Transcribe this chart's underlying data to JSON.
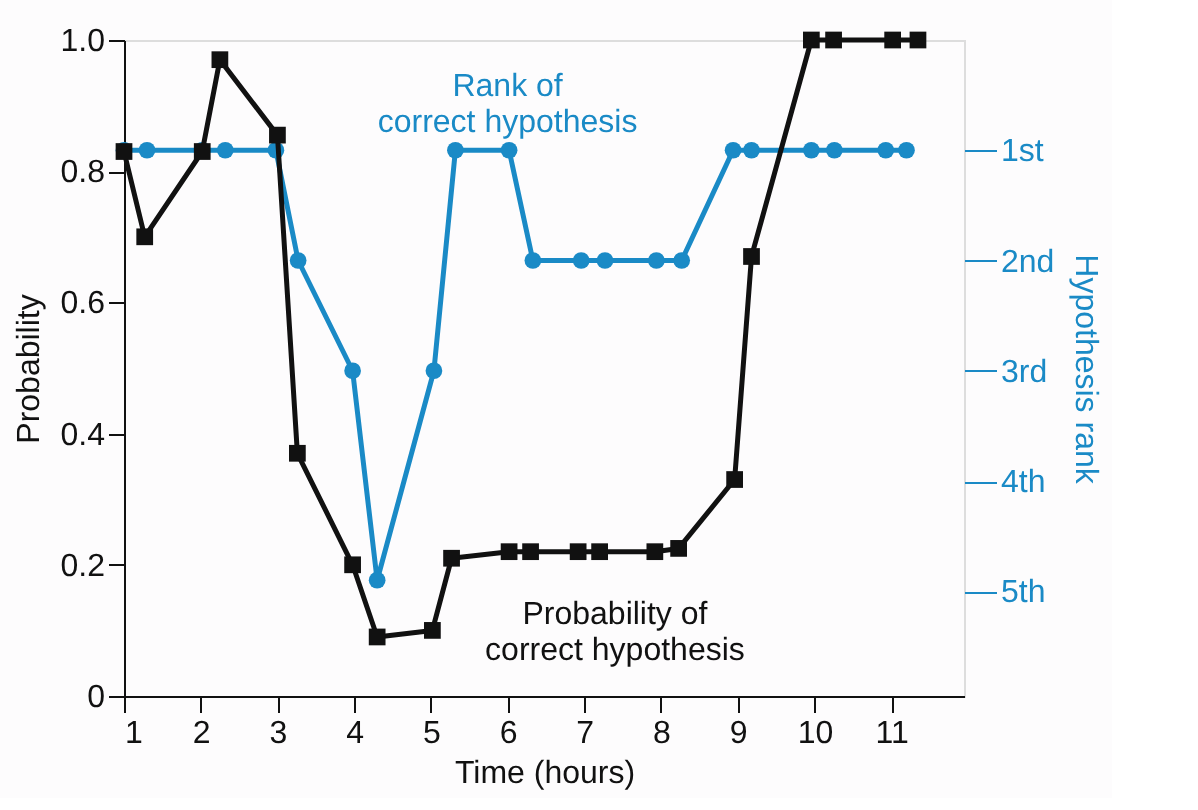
{
  "chart_data": {
    "type": "line",
    "xlabel": "Time (hours)",
    "ylabel": "Probability",
    "y2label": "Hypothesis rank",
    "xlim": [
      1,
      11.95
    ],
    "xticks": [
      1,
      2,
      3,
      4,
      5,
      6,
      7,
      8,
      9,
      10,
      11
    ],
    "ylim": [
      0,
      1
    ],
    "yticks": [
      0,
      0.2,
      0.4,
      0.6,
      0.8,
      {
        "value": 1,
        "label": "1.0"
      }
    ],
    "y2lim": [
      5.95,
      0
    ],
    "y2ticks": [
      {
        "value": 1,
        "label": "1st"
      },
      {
        "value": 2,
        "label": "2nd"
      },
      {
        "value": 3,
        "label": "3rd"
      },
      {
        "value": 4,
        "label": "4th"
      },
      {
        "value": 5,
        "label": "5th"
      }
    ],
    "grid": false,
    "series": [
      {
        "name": "Probability of\ncorrect hypothesis",
        "color": "#111111",
        "marker": "square",
        "axis": "y",
        "x": [
          1.0,
          1.27,
          2.02,
          2.25,
          3.0,
          3.26,
          3.98,
          4.3,
          5.02,
          5.27,
          6.02,
          6.3,
          6.92,
          7.2,
          7.92,
          8.23,
          8.96,
          9.18,
          9.96,
          10.25,
          11.02,
          11.35
        ],
        "values": [
          0.83,
          0.7,
          0.83,
          0.97,
          0.855,
          0.37,
          0.2,
          0.09,
          0.1,
          0.21,
          0.22,
          0.22,
          0.22,
          0.22,
          0.22,
          0.225,
          0.33,
          0.67,
          1.0,
          1.0,
          1.0,
          1.0
        ]
      },
      {
        "name": "Rank of\ncorrect hypothesis",
        "color": "#1a8ac6",
        "marker": "circle",
        "axis": "y2",
        "x": [
          1.0,
          1.3,
          2.02,
          2.32,
          2.98,
          3.27,
          3.98,
          4.3,
          5.04,
          5.32,
          6.02,
          6.33,
          6.96,
          7.27,
          7.94,
          8.27,
          8.94,
          9.18,
          9.96,
          10.26,
          10.93,
          11.2
        ],
        "values": [
          1,
          1,
          1,
          1,
          1,
          2,
          3,
          4.9,
          3,
          1,
          1,
          2,
          2,
          2,
          2,
          2,
          1,
          1,
          1,
          1,
          1,
          1
        ]
      }
    ]
  }
}
